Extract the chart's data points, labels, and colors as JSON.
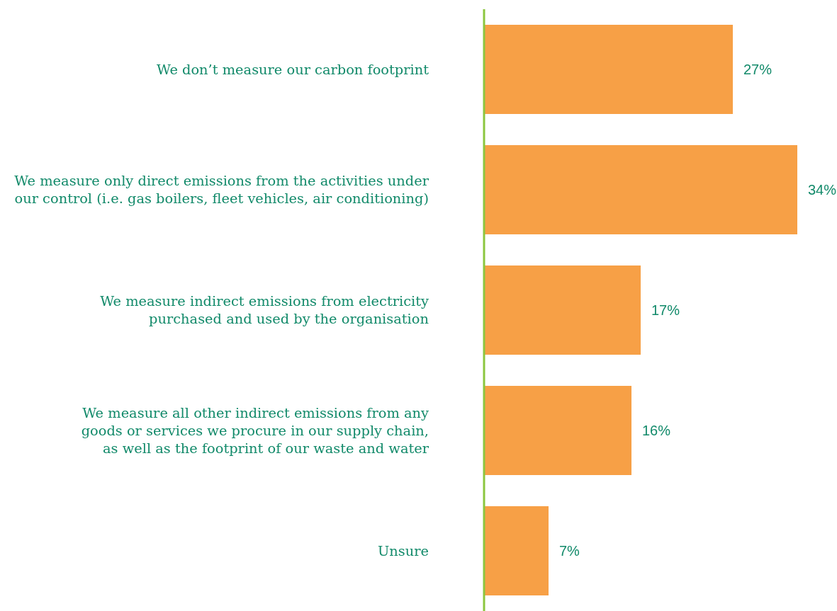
{
  "chart_data": {
    "type": "bar",
    "orientation": "horizontal",
    "categories": [
      "We don’t measure our carbon footprint",
      "We measure only direct emissions from the activities under\nour control (i.e. gas boilers, fleet vehicles, air conditioning)",
      "We measure indirect emissions from electricity\npurchased and used by the organisation",
      "We measure all other indirect emissions from any\ngoods or services we procure in our supply chain,\nas well as the footprint of our waste and water",
      "Unsure"
    ],
    "values": [
      27,
      34,
      17,
      16,
      7
    ],
    "value_labels": [
      "27%",
      "34%",
      "17%",
      "16%",
      "7%"
    ],
    "color": "#f7a046"
  }
}
